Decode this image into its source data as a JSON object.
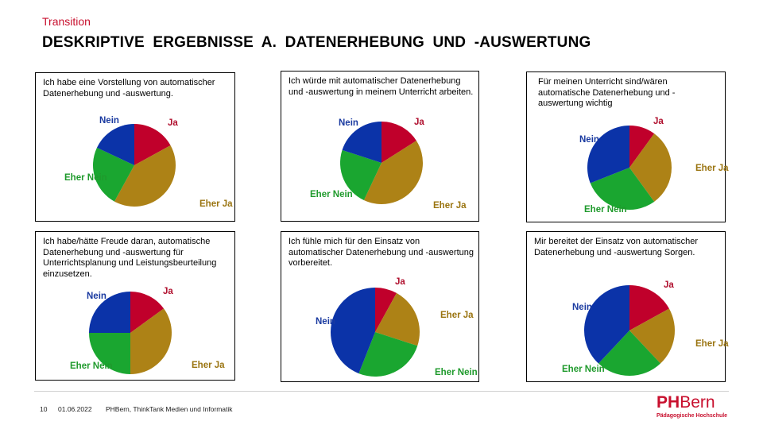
{
  "header": {
    "kicker": "Transition",
    "title": "DESKRIPTIVE ERGEBNISSE A. DATENERHEBUNG UND -AUSWERTUNG"
  },
  "footer": {
    "page_number": "10",
    "date": "01.06.2022",
    "source": "PHBern, ThinkTank Medien und Informatik",
    "logo_ph": "PH",
    "logo_bern": "Bern",
    "logo_sub": "Pädagogische Hochschule"
  },
  "colors": {
    "Ja": "#c0002b",
    "Eher Ja": "#ad8216",
    "Eher Nein": "#1aa630",
    "Nein": "#0b33a8"
  },
  "label_colors": {
    "Ja": "#b0102e",
    "Eher Ja": "#9a7410",
    "Eher Nein": "#1f9a2c",
    "Nein": "#1a3aa0"
  },
  "chart_data": [
    {
      "type": "pie",
      "title": "Ich habe eine Vorstellung von automatischer Datenerhebung und -auswertung.",
      "categories": [
        "Ja",
        "Eher Ja",
        "Eher Nein",
        "Nein"
      ],
      "values": [
        17,
        41,
        24,
        18
      ]
    },
    {
      "type": "pie",
      "title": "Ich würde mit automatischer Datenerhebung und -auswertung in meinem Unterricht arbeiten.",
      "categories": [
        "Ja",
        "Eher Ja",
        "Eher Nein",
        "Nein"
      ],
      "values": [
        16,
        41,
        23,
        20
      ]
    },
    {
      "type": "pie",
      "title": "Für meinen Unterricht sind/wären automatische Datenerhebung und -auswertung wichtig",
      "categories": [
        "Ja",
        "Eher Ja",
        "Eher Nein",
        "Nein"
      ],
      "values": [
        10,
        30,
        29,
        31
      ]
    },
    {
      "type": "pie",
      "title": "Ich habe/hätte Freude daran, automatische Datenerhebung und -auswertung für Unterrichtsplanung und Leistungsbeurteilung einzusetzen.",
      "categories": [
        "Ja",
        "Eher Ja",
        "Eher Nein",
        "Nein"
      ],
      "values": [
        15,
        35,
        25,
        25
      ]
    },
    {
      "type": "pie",
      "title": "Ich fühle mich für den Einsatz von automatischer Datenerhebung und -auswertung vorbereitet.",
      "categories": [
        "Ja",
        "Eher Ja",
        "Eher Nein",
        "Nein"
      ],
      "values": [
        8,
        22,
        26,
        44
      ]
    },
    {
      "type": "pie",
      "title": "Mir bereitet der Einsatz von automatischer Datenerhebung und -auswertung Sorgen.",
      "categories": [
        "Ja",
        "Eher Ja",
        "Eher Nein",
        "Nein"
      ],
      "values": [
        17,
        21,
        24,
        38
      ]
    }
  ]
}
